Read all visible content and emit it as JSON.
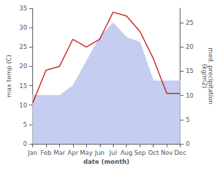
{
  "chart_data": {
    "type": "line",
    "categories": [
      "Jan",
      "Feb",
      "Mar",
      "Apr",
      "May",
      "Jun",
      "Jul",
      "Aug",
      "Sep",
      "Oct",
      "Nov",
      "Dec"
    ],
    "series": [
      {
        "type": "area",
        "axis": "y2",
        "color": "#c5cef0",
        "values": [
          10.0,
          10.0,
          10.0,
          12.0,
          17.0,
          22.0,
          25.0,
          22.0,
          21.0,
          13.0,
          13.0,
          13.0
        ]
      },
      {
        "type": "line",
        "color": "#cc2222",
        "values": [
          10.5,
          19.0,
          20.0,
          27.0,
          25.0,
          27.0,
          34.0,
          33.0,
          29.0,
          22.0,
          13.0,
          13.0
        ]
      }
    ],
    "xlabel": "date (month)",
    "ylabel": "max temp (C)",
    "y2label": "med. precipitation\n(kg/m2)",
    "ylim": [
      0,
      35
    ],
    "yticks": [
      0,
      5,
      10,
      15,
      20,
      25,
      30,
      35
    ],
    "y2lim": [
      0,
      28
    ],
    "y2ticks": [
      0,
      5,
      10,
      15,
      20,
      25
    ],
    "grid": false
  }
}
